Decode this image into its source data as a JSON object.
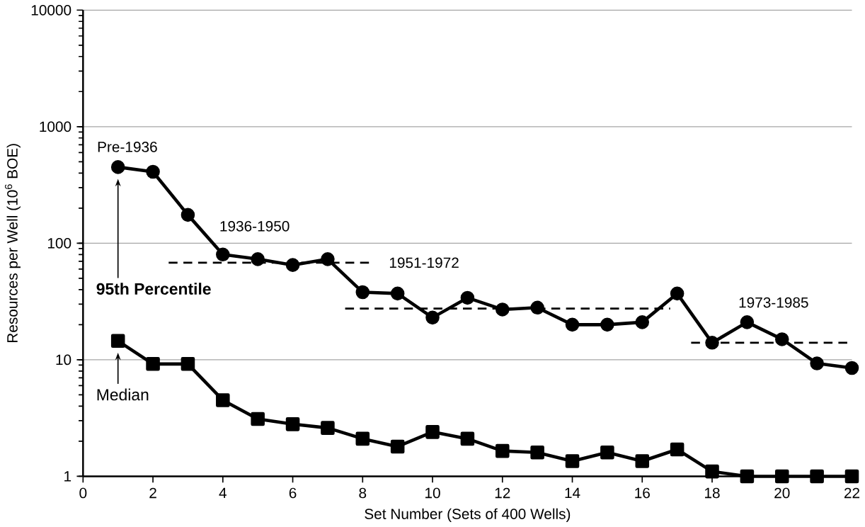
{
  "chart_data": {
    "type": "line",
    "xlabel": "Set Number (Sets of 400 Wells)",
    "ylabel": "Resources per Well (10$^{6}$ BOE)",
    "log": "y",
    "xlim": [
      0,
      22
    ],
    "ylim": [
      1,
      10000
    ],
    "xticks": [
      0,
      2,
      4,
      6,
      8,
      10,
      12,
      14,
      16,
      18,
      20,
      22
    ],
    "yticks": [
      1,
      10,
      100,
      1000,
      10000
    ],
    "grid": "y",
    "x": [
      1,
      2,
      3,
      4,
      5,
      6,
      7,
      8,
      9,
      10,
      11,
      12,
      13,
      14,
      15,
      16,
      17,
      18,
      19,
      20,
      21,
      22
    ],
    "series": [
      {
        "name": "95th Percentile",
        "color": "#000000",
        "marker": "circle",
        "line_style": "solid",
        "values": [
          450,
          410,
          175,
          80,
          73,
          65,
          73,
          38,
          37,
          23,
          34,
          27,
          28,
          20,
          20,
          21,
          37,
          14,
          21,
          15,
          9.3,
          8.5
        ]
      },
      {
        "name": "Median",
        "color": "#000000",
        "marker": "square",
        "line_style": "solid",
        "values": [
          14.5,
          9.2,
          9.2,
          4.5,
          3.1,
          2.8,
          2.6,
          2.1,
          1.8,
          2.4,
          2.1,
          1.65,
          1.6,
          1.35,
          1.6,
          1.35,
          1.7,
          1.1,
          1.0,
          1.0,
          1.0,
          1.0
        ]
      },
      {
        "color": "#000000",
        "marker": "none",
        "line_style": "dashed",
        "x": [
          2.45,
          8.2
        ],
        "values": [
          68,
          68
        ]
      },
      {
        "color": "#000000",
        "marker": "none",
        "line_style": "dashed",
        "x": [
          7.5,
          16.8
        ],
        "values": [
          27.5,
          27.5
        ]
      },
      {
        "color": "#000000",
        "marker": "none",
        "line_style": "dashed",
        "x": [
          17.4,
          22
        ],
        "values": [
          14,
          14
        ]
      }
    ],
    "legend": "left",
    "annotations": [
      "Pre-1936",
      "1936-1950",
      "1951-1972",
      "1973-1985"
    ]
  }
}
